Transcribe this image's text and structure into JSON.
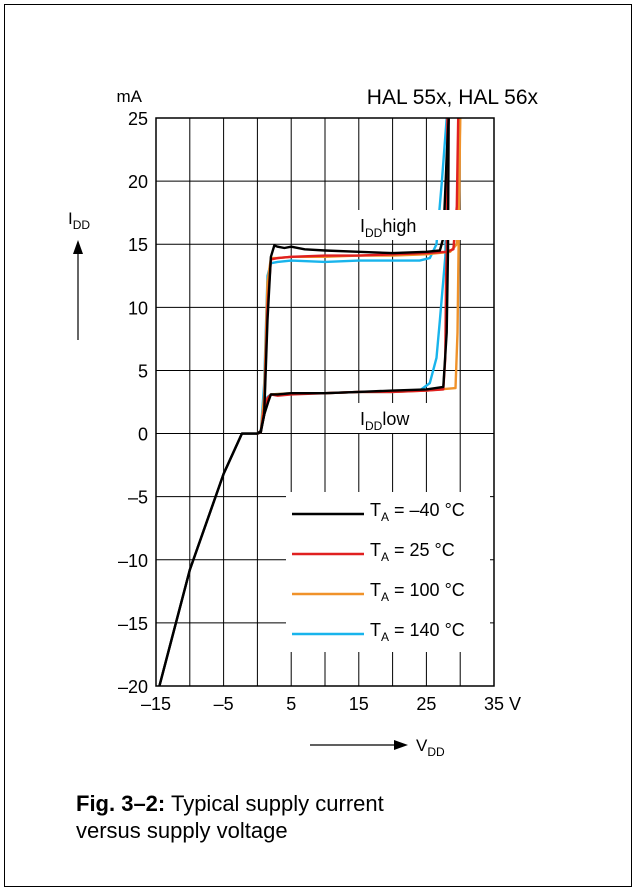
{
  "chart_data": {
    "type": "line",
    "title": "HAL 55x, HAL 56x",
    "xlabel": {
      "main": "V",
      "sub": "DD"
    },
    "ylabel": {
      "main": "I",
      "sub": "DD"
    },
    "y_unit": "mA",
    "x_unit": "V",
    "xlim": [
      -15,
      35
    ],
    "ylim": [
      -20,
      25
    ],
    "x_ticks": [
      -15,
      -5,
      5,
      15,
      25,
      35
    ],
    "x_tick_labels": [
      "–15",
      "–5",
      "5",
      "15",
      "25",
      "35 V"
    ],
    "y_ticks": [
      -20,
      -15,
      -10,
      -5,
      0,
      5,
      10,
      15,
      20,
      25
    ],
    "y_tick_labels": [
      "–20",
      "–15",
      "–10",
      "–5",
      "0",
      "5",
      "10",
      "15",
      "20",
      "25"
    ],
    "grid": true,
    "legend_position": "bottom-right",
    "annotations": [
      {
        "main": "I",
        "sub": "DD",
        "rest": "high"
      },
      {
        "main": "I",
        "sub": "DD",
        "rest": "low"
      }
    ],
    "series": [
      {
        "name": {
          "prefix": "T",
          "sub": "A",
          "rest": " = –40 °C"
        },
        "color": "#000000",
        "high": [
          [
            -14.5,
            -20
          ],
          [
            -10,
            -10.8
          ],
          [
            -5,
            -3.2
          ],
          [
            -2.3,
            0
          ],
          [
            0,
            0
          ],
          [
            0.5,
            0.1
          ],
          [
            1,
            1.5
          ],
          [
            1.5,
            9
          ],
          [
            2,
            14
          ],
          [
            2.5,
            14.9
          ],
          [
            3,
            14.8
          ],
          [
            4,
            14.7
          ],
          [
            5,
            14.8
          ],
          [
            7,
            14.6
          ],
          [
            10,
            14.5
          ],
          [
            15,
            14.4
          ],
          [
            20,
            14.3
          ],
          [
            25,
            14.4
          ],
          [
            27,
            14.5
          ],
          [
            27.5,
            15.5
          ],
          [
            28,
            22
          ],
          [
            28.3,
            25
          ]
        ],
        "low": [
          [
            -14.5,
            -20
          ],
          [
            -10,
            -10.8
          ],
          [
            -5,
            -3.2
          ],
          [
            -2.3,
            0
          ],
          [
            0,
            0
          ],
          [
            0.5,
            0.2
          ],
          [
            1,
            1.5
          ],
          [
            1.6,
            2.5
          ],
          [
            2,
            3.1
          ],
          [
            3,
            3.1
          ],
          [
            5,
            3.2
          ],
          [
            10,
            3.2
          ],
          [
            15,
            3.3
          ],
          [
            20,
            3.4
          ],
          [
            25,
            3.5
          ],
          [
            27.5,
            3.7
          ],
          [
            28,
            8
          ],
          [
            28.2,
            14.5
          ],
          [
            28.3,
            25
          ]
        ]
      },
      {
        "name": {
          "prefix": "T",
          "sub": "A",
          "rest": " = 25 °C"
        },
        "color": "#e02020",
        "high": [
          [
            0,
            0
          ],
          [
            0.5,
            0.1
          ],
          [
            1,
            2
          ],
          [
            1.5,
            10
          ],
          [
            2,
            13.8
          ],
          [
            3,
            13.9
          ],
          [
            5,
            14
          ],
          [
            10,
            14.1
          ],
          [
            15,
            14.1
          ],
          [
            20,
            14.2
          ],
          [
            25,
            14.3
          ],
          [
            28,
            14.4
          ],
          [
            29,
            14.6
          ],
          [
            29.5,
            18
          ],
          [
            29.7,
            25
          ]
        ],
        "low": [
          [
            0,
            0
          ],
          [
            0.5,
            0.2
          ],
          [
            1,
            1.5
          ],
          [
            1.5,
            2.8
          ],
          [
            2,
            3.1
          ],
          [
            3,
            3.0
          ],
          [
            5,
            3.1
          ],
          [
            10,
            3.2
          ],
          [
            15,
            3.3
          ],
          [
            20,
            3.3
          ],
          [
            25,
            3.4
          ],
          [
            27.5,
            3.5
          ],
          [
            27.8,
            6
          ],
          [
            27.9,
            12
          ],
          [
            28,
            14.2
          ],
          [
            28.1,
            25
          ]
        ]
      },
      {
        "name": {
          "prefix": "T",
          "sub": "A",
          "rest": " = 100 °C"
        },
        "color": "#f0922a",
        "high": [
          [
            0,
            0
          ],
          [
            0.5,
            0.1
          ],
          [
            1,
            3
          ],
          [
            1.5,
            12
          ],
          [
            2,
            13.9
          ],
          [
            3,
            13.9
          ],
          [
            5,
            14
          ],
          [
            10,
            14
          ],
          [
            15,
            14.1
          ],
          [
            20,
            14.1
          ],
          [
            25,
            14.2
          ],
          [
            28.5,
            14.4
          ],
          [
            29.5,
            15
          ],
          [
            29.8,
            20
          ],
          [
            30,
            25
          ]
        ],
        "low": [
          [
            0,
            0
          ],
          [
            0.5,
            0.2
          ],
          [
            1,
            1.6
          ],
          [
            1.5,
            2.8
          ],
          [
            2,
            3.1
          ],
          [
            5,
            3.2
          ],
          [
            10,
            3.2
          ],
          [
            15,
            3.3
          ],
          [
            20,
            3.3
          ],
          [
            25,
            3.4
          ],
          [
            29.3,
            3.6
          ],
          [
            29.6,
            8
          ],
          [
            29.8,
            16
          ],
          [
            30,
            25
          ]
        ]
      },
      {
        "name": {
          "prefix": "T",
          "sub": "A",
          "rest": " = 140 °C"
        },
        "color": "#18b4ec",
        "high": [
          [
            0,
            0
          ],
          [
            0.5,
            0.1
          ],
          [
            1,
            4
          ],
          [
            1.5,
            12.5
          ],
          [
            2,
            13.5
          ],
          [
            3,
            13.6
          ],
          [
            5,
            13.7
          ],
          [
            10,
            13.6
          ],
          [
            15,
            13.7
          ],
          [
            20,
            13.7
          ],
          [
            24,
            13.7
          ],
          [
            25.5,
            13.9
          ],
          [
            26.5,
            15
          ],
          [
            27.3,
            20
          ],
          [
            28,
            25
          ]
        ],
        "low": [
          [
            0,
            0
          ],
          [
            0.5,
            0.2
          ],
          [
            1,
            1.8
          ],
          [
            1.5,
            2.9
          ],
          [
            2,
            3.1
          ],
          [
            5,
            3.2
          ],
          [
            10,
            3.2
          ],
          [
            15,
            3.3
          ],
          [
            20,
            3.3
          ],
          [
            24,
            3.4
          ],
          [
            25.5,
            4
          ],
          [
            26.5,
            6
          ],
          [
            27,
            9
          ],
          [
            27.8,
            14
          ],
          [
            28.2,
            25
          ]
        ]
      }
    ]
  },
  "caption": {
    "label": "Fig. 3–2:",
    "line1": " Typical supply current",
    "line2": "versus supply voltage"
  }
}
